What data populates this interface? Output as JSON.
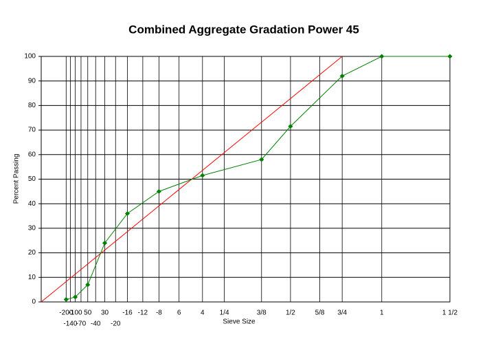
{
  "chart_data": {
    "type": "line",
    "title": "Combined Aggregate Gradation Power 45",
    "x_label": "Sieve Size",
    "y_label": "Percent Passing",
    "x_scale_power": 0.45,
    "grid": true,
    "xlim": [
      0,
      37.5
    ],
    "ylim": [
      0,
      100
    ],
    "yticks": [
      0,
      10,
      20,
      30,
      40,
      50,
      60,
      70,
      80,
      90,
      100
    ],
    "xticks": [
      {
        "value": 0.075,
        "label": "-200"
      },
      {
        "value": 0.106,
        "label": "-140"
      },
      {
        "value": 0.15,
        "label": "-100"
      },
      {
        "value": 0.212,
        "label": "-70"
      },
      {
        "value": 0.3,
        "label": "50"
      },
      {
        "value": 0.425,
        "label": "-40"
      },
      {
        "value": 0.6,
        "label": "30"
      },
      {
        "value": 0.85,
        "label": "-20"
      },
      {
        "value": 1.18,
        "label": "-16"
      },
      {
        "value": 1.7,
        "label": "-12"
      },
      {
        "value": 2.36,
        "label": "-8"
      },
      {
        "value": 3.35,
        "label": "6"
      },
      {
        "value": 4.75,
        "label": "4"
      },
      {
        "value": 6.3,
        "label": "1/4"
      },
      {
        "value": 9.5,
        "label": "3/8"
      },
      {
        "value": 12.5,
        "label": "1/2"
      },
      {
        "value": 16,
        "label": "5/8"
      },
      {
        "value": 19,
        "label": "3/4"
      },
      {
        "value": 25,
        "label": "1"
      },
      {
        "value": 37.5,
        "label": "1 1/2"
      }
    ],
    "series": [
      {
        "color": "#ff0000",
        "markers": false,
        "x": [
          0,
          19
        ],
        "values": [
          0,
          100
        ]
      },
      {
        "color": "#008000",
        "markers": true,
        "x": [
          0.075,
          0.15,
          0.3,
          0.6,
          1.18,
          2.36,
          4.75,
          9.5,
          12.5,
          19,
          25,
          37.5
        ],
        "values": [
          1,
          2,
          7,
          24,
          36,
          45,
          51.5,
          58,
          71.5,
          92,
          100,
          100
        ]
      }
    ]
  }
}
